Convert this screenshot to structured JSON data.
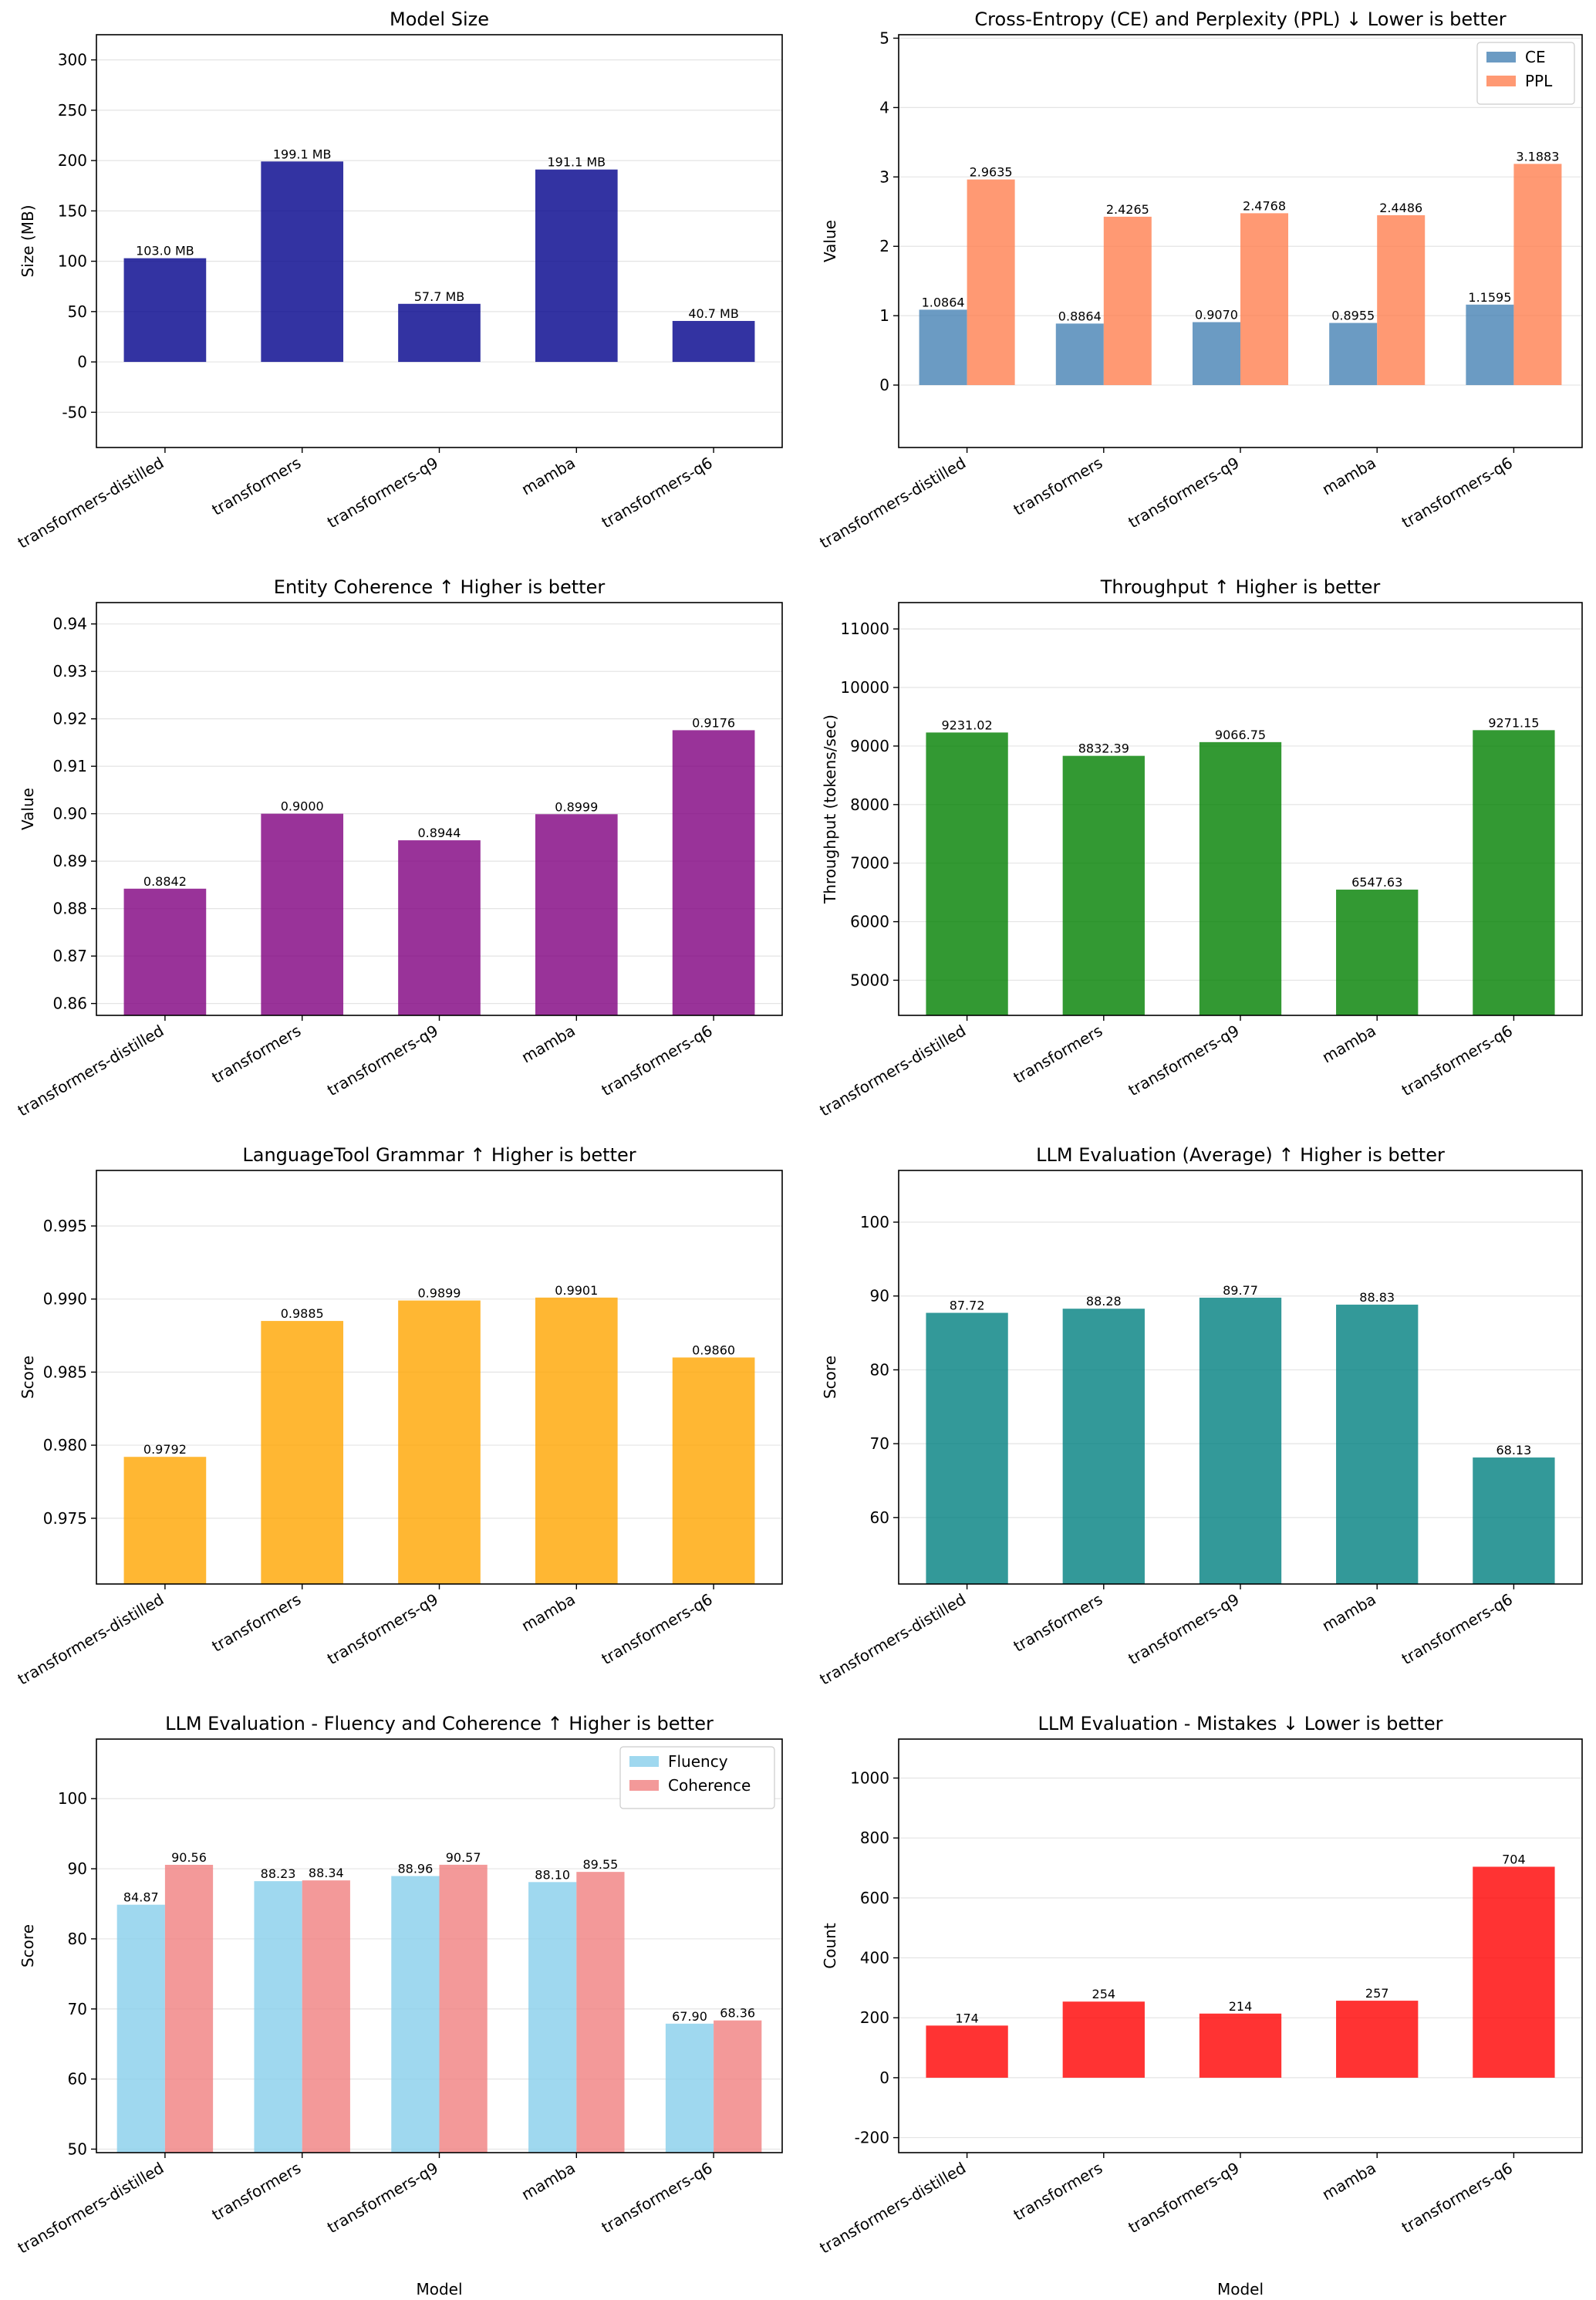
{
  "models": [
    "transformers-distilled",
    "transformers",
    "transformers-q9",
    "mamba",
    "transformers-q6"
  ],
  "chart_data": [
    {
      "id": "model-size",
      "type": "bar",
      "title": "Model Size",
      "xlabel": "",
      "ylabel": "Size (MB)",
      "ylim": [
        -85,
        325
      ],
      "yticks": [
        -50,
        0,
        50,
        100,
        150,
        200,
        250,
        300
      ],
      "tick_decimals": 0,
      "categories": [
        "transformers-distilled",
        "transformers",
        "transformers-q9",
        "mamba",
        "transformers-q6"
      ],
      "series": [
        {
          "name": "Size (MB)",
          "color": "#00008b",
          "values": [
            103.0,
            199.1,
            57.7,
            191.1,
            40.7
          ],
          "labels": [
            "103.0 MB",
            "199.1 MB",
            "57.7 MB",
            "191.1 MB",
            "40.7 MB"
          ]
        }
      ],
      "legend": null
    },
    {
      "id": "ce-ppl",
      "type": "bar",
      "title": "Cross-Entropy (CE) and Perplexity (PPL) ↓ Lower is better",
      "xlabel": "",
      "ylabel": "Value",
      "ylim": [
        -0.9,
        5.05
      ],
      "yticks": [
        0,
        1,
        2,
        3,
        4,
        5
      ],
      "tick_decimals": 0,
      "categories": [
        "transformers-distilled",
        "transformers",
        "transformers-q9",
        "mamba",
        "transformers-q6"
      ],
      "series": [
        {
          "name": "CE",
          "color": "#4682b4",
          "values": [
            1.0864,
            0.8864,
            0.907,
            0.8955,
            1.1595
          ],
          "labels": [
            "1.0864",
            "0.8864",
            "0.9070",
            "0.8955",
            "1.1595"
          ]
        },
        {
          "name": "PPL",
          "color": "#ff7f50",
          "values": [
            2.9635,
            2.4265,
            2.4768,
            2.4486,
            3.1883
          ],
          "labels": [
            "2.9635",
            "2.4265",
            "2.4768",
            "2.4486",
            "3.1883"
          ]
        }
      ],
      "legend": "top-right"
    },
    {
      "id": "entity-coherence",
      "type": "bar",
      "title": "Entity Coherence ↑ Higher is better",
      "xlabel": "",
      "ylabel": "Value",
      "ylim": [
        0.8575,
        0.9445
      ],
      "yticks": [
        0.86,
        0.87,
        0.88,
        0.89,
        0.9,
        0.91,
        0.92,
        0.93,
        0.94
      ],
      "tick_decimals": 2,
      "categories": [
        "transformers-distilled",
        "transformers",
        "transformers-q9",
        "mamba",
        "transformers-q6"
      ],
      "series": [
        {
          "name": "Entity Coherence",
          "color": "#800080",
          "values": [
            0.8842,
            0.9,
            0.8944,
            0.8999,
            0.9176
          ],
          "labels": [
            "0.8842",
            "0.9000",
            "0.8944",
            "0.8999",
            "0.9176"
          ]
        }
      ],
      "legend": null
    },
    {
      "id": "throughput",
      "type": "bar",
      "title": "Throughput ↑ Higher is better",
      "xlabel": "",
      "ylabel": "Throughput (tokens/sec)",
      "ylim": [
        4400,
        11450
      ],
      "yticks": [
        5000,
        6000,
        7000,
        8000,
        9000,
        10000,
        11000
      ],
      "tick_decimals": 0,
      "categories": [
        "transformers-distilled",
        "transformers",
        "transformers-q9",
        "mamba",
        "transformers-q6"
      ],
      "series": [
        {
          "name": "Throughput",
          "color": "#008000",
          "values": [
            9231.02,
            8832.39,
            9066.75,
            6547.63,
            9271.15
          ],
          "labels": [
            "9231.02",
            "8832.39",
            "9066.75",
            "6547.63",
            "9271.15"
          ]
        }
      ],
      "legend": null
    },
    {
      "id": "grammar",
      "type": "bar",
      "title": "LanguageTool Grammar ↑ Higher is better",
      "xlabel": "",
      "ylabel": "Score",
      "ylim": [
        0.9705,
        0.9988
      ],
      "yticks": [
        0.975,
        0.98,
        0.985,
        0.99,
        0.995
      ],
      "tick_decimals": 3,
      "categories": [
        "transformers-distilled",
        "transformers",
        "transformers-q9",
        "mamba",
        "transformers-q6"
      ],
      "series": [
        {
          "name": "Grammar",
          "color": "#ffa500",
          "values": [
            0.9792,
            0.9885,
            0.9899,
            0.9901,
            0.986
          ],
          "labels": [
            "0.9792",
            "0.9885",
            "0.9899",
            "0.9901",
            "0.9860"
          ]
        }
      ],
      "legend": null
    },
    {
      "id": "llm-average",
      "type": "bar",
      "title": "LLM Evaluation (Average) ↑ Higher is better",
      "xlabel": "",
      "ylabel": "Score",
      "ylim": [
        51,
        107
      ],
      "yticks": [
        60,
        70,
        80,
        90,
        100
      ],
      "tick_decimals": 0,
      "categories": [
        "transformers-distilled",
        "transformers",
        "transformers-q9",
        "mamba",
        "transformers-q6"
      ],
      "series": [
        {
          "name": "Average",
          "color": "#008080",
          "values": [
            87.72,
            88.28,
            89.77,
            88.83,
            68.13
          ],
          "labels": [
            "87.72",
            "88.28",
            "89.77",
            "88.83",
            "68.13"
          ]
        }
      ],
      "legend": null
    },
    {
      "id": "fluency-coherence",
      "type": "bar",
      "title": "LLM Evaluation - Fluency and Coherence ↑ Higher is better",
      "xlabel": "Model",
      "ylabel": "Score",
      "ylim": [
        49.5,
        108.5
      ],
      "yticks": [
        50,
        60,
        70,
        80,
        90,
        100
      ],
      "tick_decimals": 0,
      "categories": [
        "transformers-distilled",
        "transformers",
        "transformers-q9",
        "mamba",
        "transformers-q6"
      ],
      "series": [
        {
          "name": "Fluency",
          "color": "#87ceeb",
          "values": [
            84.87,
            88.23,
            88.96,
            88.1,
            67.9
          ],
          "labels": [
            "84.87",
            "88.23",
            "88.96",
            "88.10",
            "67.90"
          ]
        },
        {
          "name": "Coherence",
          "color": "#f08080",
          "values": [
            90.56,
            88.34,
            90.57,
            89.55,
            68.36
          ],
          "labels": [
            "90.56",
            "88.34",
            "90.57",
            "89.55",
            "68.36"
          ]
        }
      ],
      "legend": "top-right"
    },
    {
      "id": "mistakes",
      "type": "bar",
      "title": "LLM Evaluation - Mistakes ↓ Lower is better",
      "xlabel": "Model",
      "ylabel": "Count",
      "ylim": [
        -250,
        1130
      ],
      "yticks": [
        -200,
        0,
        200,
        400,
        600,
        800,
        1000
      ],
      "tick_decimals": 0,
      "categories": [
        "transformers-distilled",
        "transformers",
        "transformers-q9",
        "mamba",
        "transformers-q6"
      ],
      "series": [
        {
          "name": "Mistakes",
          "color": "#ff0000",
          "values": [
            174,
            254,
            214,
            257,
            704
          ],
          "labels": [
            "174",
            "254",
            "214",
            "257",
            "704"
          ]
        }
      ],
      "legend": null
    }
  ]
}
